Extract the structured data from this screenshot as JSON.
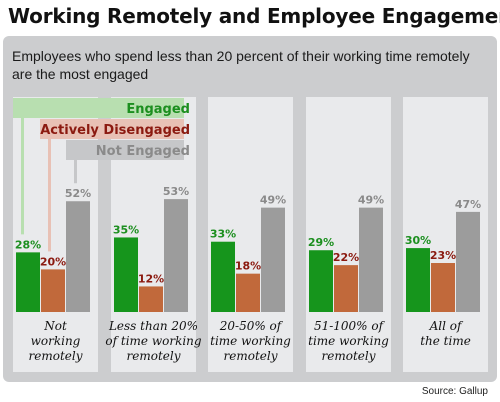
{
  "title": "Working Remotely and Employee Engagement",
  "subtitle": "Employees who spend less than 20 percent of their working time remotely are the most engaged",
  "source": "Source: Gallup",
  "colors": {
    "engaged": "#16951c",
    "disengaged": "#c1693b",
    "not_engaged": "#9c9c9c",
    "panel": "#cccdcf",
    "column": "#e9eaec",
    "engaged_text": "#1c8f1f",
    "disengaged_text": "#8b1a10",
    "not_engaged_text": "#8a8a8a"
  },
  "chart_data": {
    "type": "bar",
    "title": "Working Remotely and Employee Engagement",
    "subtitle": "Employees who spend less than 20 percent of their working time remotely are the most engaged",
    "categories": [
      [
        "Not",
        "working",
        "remotely"
      ],
      [
        "Less than 20%",
        "of time working",
        "remotely"
      ],
      [
        "20-50% of",
        "time working",
        "remotely"
      ],
      [
        "51-100% of",
        "time working",
        "remotely"
      ],
      [
        "All of",
        "the time"
      ]
    ],
    "series": [
      {
        "name": "Engaged",
        "values": [
          28,
          35,
          33,
          29,
          30
        ],
        "labels": [
          "28%",
          "35%",
          "33%",
          "29%",
          "30%"
        ]
      },
      {
        "name": "Actively Disengaged",
        "values": [
          20,
          12,
          18,
          22,
          23
        ],
        "labels": [
          "20%",
          "12%",
          "18%",
          "22%",
          "23%"
        ]
      },
      {
        "name": "Not Engaged",
        "values": [
          52,
          53,
          49,
          49,
          47
        ],
        "labels": [
          "52%",
          "53%",
          "49%",
          "49%",
          "47%"
        ]
      }
    ],
    "unit": "%",
    "legend": "top-left",
    "grid": false
  }
}
